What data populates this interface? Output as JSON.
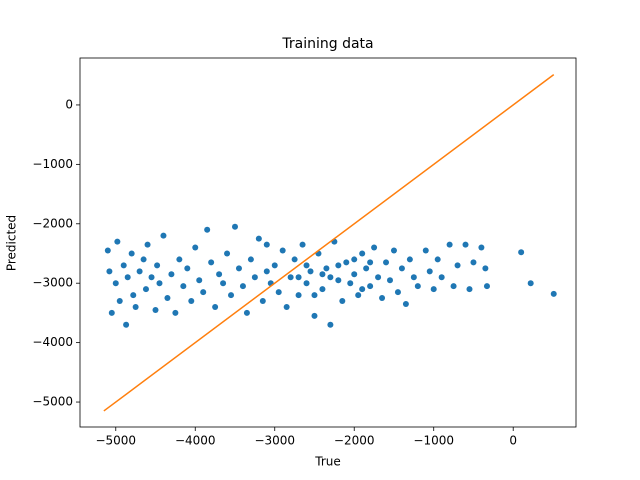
{
  "chart_data": {
    "type": "scatter",
    "title": "Training data",
    "xlabel": "True",
    "ylabel": "Predicted",
    "xlim": [
      -5450,
      790
    ],
    "ylim": [
      -5420,
      790
    ],
    "xticks": [
      {
        "value": -5000,
        "label": "−5000"
      },
      {
        "value": -4000,
        "label": "−4000"
      },
      {
        "value": -3000,
        "label": "−3000"
      },
      {
        "value": -2000,
        "label": "−2000"
      },
      {
        "value": -1000,
        "label": "−1000"
      },
      0
    ],
    "yticks": [
      {
        "value": -5000,
        "label": "−5000"
      },
      {
        "value": -4000,
        "label": "−4000"
      },
      {
        "value": -3000,
        "label": "−3000"
      },
      {
        "value": -2000,
        "label": "−2000"
      },
      {
        "value": -1000,
        "label": "−1000"
      },
      0
    ],
    "series": [
      {
        "type": "scatter",
        "color": "#1f77b4",
        "x": [
          -5100,
          -5080,
          -5050,
          -5000,
          -4980,
          -4950,
          -4900,
          -4870,
          -4850,
          -4800,
          -4780,
          -4750,
          -4700,
          -4650,
          -4620,
          -4600,
          -4550,
          -4500,
          -4480,
          -4450,
          -4400,
          -4350,
          -4300,
          -4250,
          -4200,
          -4150,
          -4100,
          -4050,
          -4000,
          -3950,
          -3900,
          -3850,
          -3800,
          -3750,
          -3700,
          -3650,
          -3600,
          -3550,
          -3500,
          -3450,
          -3400,
          -3350,
          -3300,
          -3250,
          -3200,
          -3150,
          -3100,
          -3050,
          -3000,
          -2950,
          -2900,
          -2850,
          -2800,
          -2750,
          -2700,
          -2650,
          -2600,
          -2550,
          -2500,
          -2450,
          -2400,
          -2350,
          -2300,
          -2250,
          -2200,
          -2150,
          -2100,
          -2050,
          -2000,
          -1950,
          -1900,
          -1850,
          -1800,
          -1750,
          -1700,
          -1650,
          -1600,
          -1550,
          -1500,
          -1450,
          -1400,
          -1350,
          -1300,
          -1250,
          -1200,
          -1100,
          -1050,
          -1000,
          -950,
          -900,
          -800,
          -750,
          -700,
          -600,
          -550,
          -500,
          -400,
          -350,
          -330,
          100,
          220,
          510,
          -2600,
          -2300,
          -2000,
          -1900,
          -2400,
          -2700,
          -2200,
          -1800,
          -3100,
          -2500
        ],
        "values": [
          -2450,
          -2800,
          -3500,
          -3000,
          -2300,
          -3300,
          -2700,
          -3700,
          -2900,
          -2500,
          -3200,
          -3400,
          -2800,
          -2600,
          -3100,
          -2350,
          -2900,
          -3450,
          -2700,
          -3000,
          -2200,
          -3250,
          -2850,
          -3500,
          -2600,
          -3050,
          -2750,
          -3300,
          -2400,
          -2950,
          -3150,
          -2100,
          -2650,
          -3400,
          -2850,
          -3000,
          -2500,
          -3200,
          -2050,
          -2750,
          -3050,
          -3500,
          -2600,
          -2900,
          -2250,
          -3300,
          -2800,
          -3000,
          -2700,
          -3150,
          -2450,
          -3400,
          -2900,
          -2600,
          -3200,
          -2350,
          -3000,
          -2800,
          -3550,
          -2500,
          -3100,
          -2750,
          -3700,
          -2300,
          -2950,
          -3300,
          -2650,
          -3000,
          -2850,
          -3200,
          -2500,
          -2750,
          -3050,
          -2400,
          -2900,
          -3250,
          -2650,
          -2950,
          -2450,
          -3150,
          -2750,
          -3350,
          -2600,
          -2900,
          -3050,
          -2450,
          -2800,
          -3100,
          -2600,
          -2900,
          -2350,
          -3050,
          -2700,
          -2350,
          -3100,
          -2650,
          -2400,
          -2750,
          -3050,
          -2480,
          -3000,
          -3180,
          -2700,
          -2900,
          -2600,
          -3100,
          -2850,
          -2900,
          -2700,
          -2650,
          -2350,
          -3200
        ]
      },
      {
        "type": "line",
        "color": "#ff7f0e",
        "x": [
          -5150,
          510
        ],
        "values": [
          -5150,
          510
        ]
      }
    ]
  }
}
